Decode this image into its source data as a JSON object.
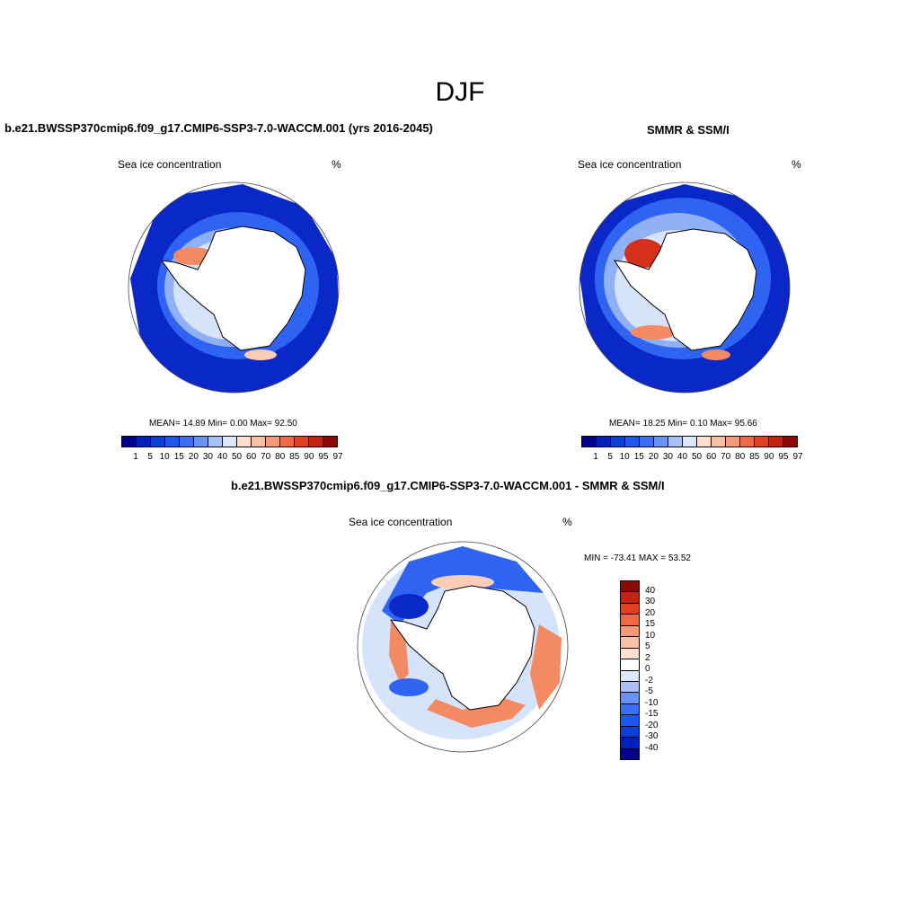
{
  "figure": {
    "season_title": "DJF"
  },
  "panels": [
    {
      "title": "b.e21.BWSSP370cmip6.f09_g17.CMIP6-SSP3-7.0-WACCM.001 (yrs 2016-2045)",
      "variable": "Sea ice concentration",
      "units": "%",
      "stats": "MEAN=  14.89  Min=   0.00  Max=  92.50"
    },
    {
      "title": "SMMR & SSM/I",
      "variable": "Sea ice concentration",
      "units": "%",
      "stats": "MEAN=  18.25  Min=   0.10  Max=  95.66"
    },
    {
      "title": "b.e21.BWSSP370cmip6.f09_g17.CMIP6-SSP3-7.0-WACCM.001 - SMMR & SSM/I",
      "variable": "Sea ice concentration",
      "units": "%",
      "stats": "MIN = -73.41 MAX =  53.52"
    }
  ],
  "abs_colorbar": {
    "labels": [
      "1",
      "5",
      "10",
      "15",
      "20",
      "30",
      "40",
      "50",
      "60",
      "70",
      "80",
      "85",
      "90",
      "95",
      "97"
    ],
    "colors": [
      "#00008b",
      "#0022bb",
      "#0a3fd6",
      "#1e56f0",
      "#3a6ef5",
      "#6a92f3",
      "#a6c1f5",
      "#dce8fb",
      "#fde0d0",
      "#f9c0a5",
      "#f49a79",
      "#ef6a45",
      "#e34020",
      "#c32412",
      "#8c0a05"
    ]
  },
  "diff_colorbar": {
    "labels": [
      "40",
      "30",
      "20",
      "15",
      "10",
      "5",
      "2",
      "0",
      "-2",
      "-5",
      "-10",
      "-15",
      "-20",
      "-30",
      "-40"
    ],
    "colors": [
      "#8c0a05",
      "#c32412",
      "#e34020",
      "#ef6a45",
      "#f49a79",
      "#f9c0a5",
      "#fde0d0",
      "#ffffff",
      "#dce8fb",
      "#a6c1f5",
      "#6a92f3",
      "#3a6ef5",
      "#1e56f0",
      "#0a3fd6",
      "#0022bb",
      "#00008b"
    ]
  },
  "map_colors": {
    "ice_dark": "#0a28c8",
    "ice_mid": "#2f64f2",
    "ice_light": "#8fb0f4",
    "ice_pale": "#d6e4fb",
    "warm_light": "#fbcdb6",
    "warm_mid": "#f48a64",
    "warm_dark": "#d7301a"
  },
  "chart_data": {
    "type": "heatmap",
    "title": "DJF",
    "maps": [
      {
        "name": "b.e21.BWSSP370cmip6.f09_g17.CMIP6-SSP3-7.0-WACCM.001 (yrs 2016-2045)",
        "mean": 14.89,
        "min": 0.0,
        "max": 92.5
      },
      {
        "name": "SMMR & SSM/I",
        "mean": 18.25,
        "min": 0.1,
        "max": 95.66
      },
      {
        "name": "b.e21.BWSSP370cmip6.f09_g17.CMIP6-SSP3-7.0-WACCM.001 - SMMR & SSM/I",
        "min": -73.41,
        "max": 53.52
      }
    ]
  }
}
